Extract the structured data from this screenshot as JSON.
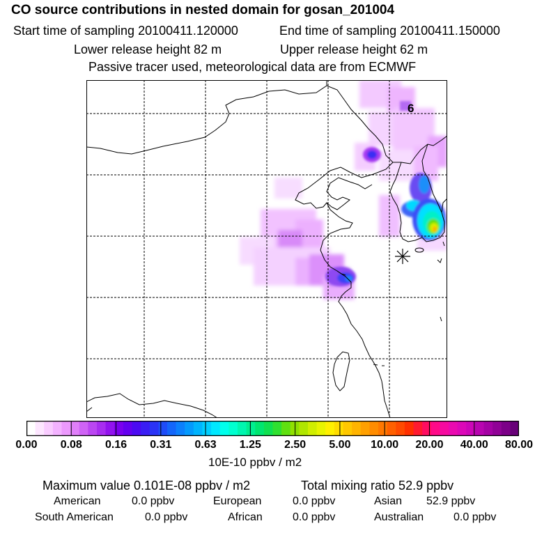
{
  "header": {
    "title": "CO  source contributions in nested domain for gosan_201004",
    "start_label": "Start time of sampling 20100411.120000",
    "end_label": "End time of sampling 20100411.150000",
    "lower_height": "Lower release height   82 m",
    "upper_height": "Upper release height   62 m",
    "tracer_note": "Passive tracer used, meteorological data are from ECMWF"
  },
  "map": {
    "station_number": "6",
    "station_marker": "asterisk-marker"
  },
  "colorbar": {
    "unit_label": "10E-10 ppbv / m2",
    "ticks": [
      "0.00",
      "0.08",
      "0.16",
      "0.31",
      "0.63",
      "1.25",
      "2.50",
      "5.00",
      "10.00",
      "20.00",
      "40.00",
      "80.00"
    ],
    "colors": [
      "#ffffff",
      "#fde6ff",
      "#f9ccff",
      "#f3b2ff",
      "#ec99fd",
      "#e07ff9",
      "#cf63f5",
      "#bb46f2",
      "#a82df0",
      "#9213ee",
      "#7a00ef",
      "#6400f0",
      "#4c0af2",
      "#3a1ef4",
      "#2a33f6",
      "#1e4cf8",
      "#1466fa",
      "#0c80fc",
      "#049afd",
      "#00b4fe",
      "#00cfff",
      "#00e8ff",
      "#00ffec",
      "#00ffd0",
      "#00f6b0",
      "#00ee90",
      "#00e670",
      "#10e050",
      "#30e030",
      "#60e010",
      "#90e000",
      "#b0e600",
      "#d0ee00",
      "#e8f400",
      "#fff000",
      "#ffdc00",
      "#ffc800",
      "#ffb400",
      "#ffa000",
      "#ff8c00",
      "#ff7800",
      "#ff6000",
      "#ff4a00",
      "#ff3000",
      "#ff1a30",
      "#ff0c60",
      "#ff0a88",
      "#f60aa0",
      "#ea0ab0",
      "#dc08b8",
      "#cc06b8",
      "#b804b0",
      "#a402a4",
      "#900296",
      "#7c0088",
      "#680078"
    ]
  },
  "summary": {
    "maximum": "Maximum value  0.101E-08 ppbv / m2",
    "total": "Total mixing ratio       52.9 ppbv",
    "american_label": "American",
    "american_value": "0.0 ppbv",
    "european_label": "European",
    "european_value": "0.0 ppbv",
    "asian_label": "Asian",
    "asian_value": "52.9 ppbv",
    "south_american_label": "South American",
    "south_american_value": "0.0 ppbv",
    "african_label": "African",
    "african_value": "0.0 ppbv",
    "australian_label": "Australian",
    "australian_value": "0.0 ppbv"
  }
}
